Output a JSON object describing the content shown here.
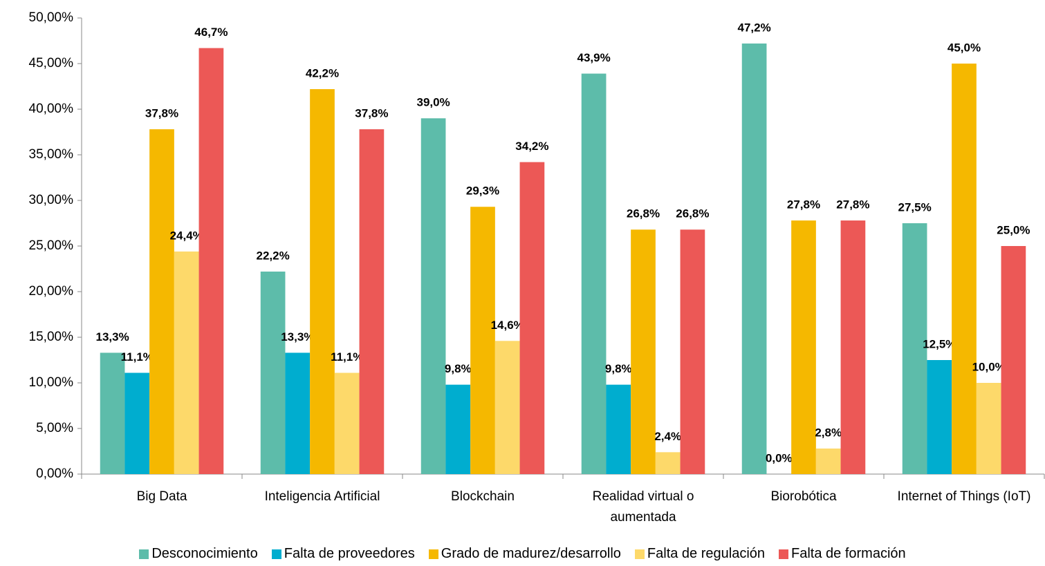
{
  "chart_data": {
    "type": "bar",
    "categories": [
      "Big Data",
      "Inteligencia Artificial",
      "Blockchain",
      "Realidad virtual o aumentada",
      "Biorobótica",
      "Internet of Things (IoT)"
    ],
    "series": [
      {
        "name": "Desconocimiento",
        "color": "#5dbcaa",
        "values": [
          13.3,
          22.2,
          39.0,
          43.9,
          47.2,
          27.5
        ],
        "value_labels": [
          "13,3%",
          "22,2%",
          "39,0%",
          "43,9%",
          "47,2%",
          "27,5%"
        ]
      },
      {
        "name": "Falta de proveedores",
        "color": "#00adcf",
        "values": [
          11.1,
          13.3,
          9.8,
          9.8,
          0.0,
          12.5
        ],
        "value_labels": [
          "11,1%",
          "13,3%",
          "9,8%",
          "9,8%",
          "0,0%",
          "12,5%"
        ]
      },
      {
        "name": "Grado de madurez/desarrollo",
        "color": "#f5b800",
        "values": [
          37.8,
          42.2,
          29.3,
          26.8,
          27.8,
          45.0
        ],
        "value_labels": [
          "37,8%",
          "42,2%",
          "29,3%",
          "26,8%",
          "27,8%",
          "45,0%"
        ]
      },
      {
        "name": "Falta de regulación",
        "color": "#fdd96a",
        "values": [
          24.4,
          11.1,
          14.6,
          2.4,
          2.8,
          10.0
        ],
        "value_labels": [
          "24,4%",
          "11,1%",
          "14,6%",
          "2,4%",
          "2,8%",
          "10,0%"
        ]
      },
      {
        "name": "Falta de formación",
        "color": "#ec5856",
        "values": [
          46.7,
          37.8,
          34.2,
          26.8,
          27.8,
          25.0
        ],
        "value_labels": [
          "46,7%",
          "37,8%",
          "34,2%",
          "26,8%",
          "27,8%",
          "25,0%"
        ]
      }
    ],
    "ylim": [
      0,
      50
    ],
    "yticks": [
      {
        "value": 0,
        "label": "0,00%"
      },
      {
        "value": 5,
        "label": "5,00%"
      },
      {
        "value": 10,
        "label": "10,00%"
      },
      {
        "value": 15,
        "label": "15,00%"
      },
      {
        "value": 20,
        "label": "20,00%"
      },
      {
        "value": 25,
        "label": "25,00%"
      },
      {
        "value": 30,
        "label": "30,00%"
      },
      {
        "value": 35,
        "label": "35,00%"
      },
      {
        "value": 40,
        "label": "40,00%"
      },
      {
        "value": 45,
        "label": "45,00%"
      },
      {
        "value": 50,
        "label": "50,00%"
      }
    ],
    "legend": "bottom",
    "grid": false
  }
}
